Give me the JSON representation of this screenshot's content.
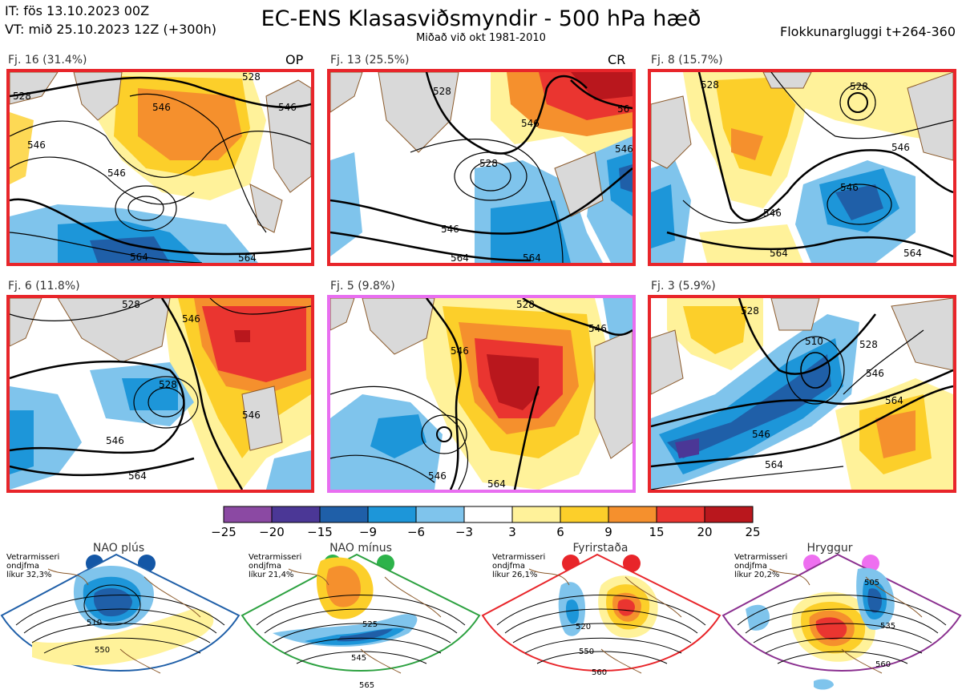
{
  "header": {
    "it": "IT: fös 13.10.2023 00Z",
    "vt": "VT: mið 25.10.2023 12Z  (+300h)",
    "title": "EC-ENS Klasasviðsmyndir - 500 hPa hæð",
    "subtitle": "Miðað við okt 1981-2010",
    "window": "Flokkunargluggi t+264-360"
  },
  "panels": [
    {
      "label": "Fj. 16 (31.4%)",
      "tag": "OP",
      "border": "#e8252a",
      "contours": [
        "528",
        "546",
        "546",
        "546",
        "564",
        "546",
        "528",
        "564"
      ]
    },
    {
      "label": "Fj. 13 (25.5%)",
      "tag": "CR",
      "border": "#e8252a",
      "contours": [
        "528",
        "546",
        "528",
        "546",
        "564",
        "564",
        "546",
        "56"
      ]
    },
    {
      "label": "Fj. 8 (15.7%)",
      "tag": "",
      "border": "#e8252a",
      "contours": [
        "528",
        "528",
        "546",
        "546",
        "546",
        "564",
        "564"
      ]
    },
    {
      "label": "Fj. 6 (11.8%)",
      "tag": "",
      "border": "#e8252a",
      "contours": [
        "528",
        "546",
        "528",
        "546",
        "564",
        "546"
      ]
    },
    {
      "label": "Fj. 5 (9.8%)",
      "tag": "",
      "border": "#e86ef0",
      "contours": [
        "528",
        "546",
        "546",
        "546",
        "564"
      ]
    },
    {
      "label": "Fj. 3 (5.9%)",
      "tag": "",
      "border": "#e8252a",
      "contours": [
        "528",
        "510",
        "528",
        "546",
        "564",
        "546",
        "564"
      ]
    }
  ],
  "colorbar": {
    "ticks": [
      "−25",
      "−20",
      "−15",
      "−9",
      "−6",
      "−3",
      "3",
      "6",
      "9",
      "15",
      "20",
      "25"
    ],
    "colors": [
      "#8b49a3",
      "#4b3796",
      "#1f5fa8",
      "#1d96d9",
      "#7fc4ec",
      "#ffffff",
      "#fff29a",
      "#fccf2a",
      "#f5902d",
      "#ea3530",
      "#b9171d"
    ]
  },
  "regimes": [
    {
      "name": "NAO plús",
      "prob_title": "Vetrarmisseri",
      "prob_sub": "ondjfma",
      "prob": "líkur 32,3%",
      "color": "#1f5fa8",
      "dot": "#1457a6",
      "contours": [
        "510",
        "550"
      ]
    },
    {
      "name": "NAO mínus",
      "prob_title": "Vetrarmisseri",
      "prob_sub": "ondjfma",
      "prob": "líkur 21,4%",
      "color": "#2ca140",
      "dot": "#2db34a",
      "contours": [
        "525",
        "545",
        "565"
      ]
    },
    {
      "name": "Fyrirstaða",
      "prob_title": "Vetrarmisseri",
      "prob_sub": "ondjfma",
      "prob": "líkur 26,1%",
      "color": "#e8252a",
      "dot": "#e8252a",
      "contours": [
        "520",
        "550",
        "560"
      ]
    },
    {
      "name": "Hryggur",
      "prob_title": "Vetrarmisseri",
      "prob_sub": "ondjfma",
      "prob": "líkur 20,2%",
      "color": "#8a2f8f",
      "dot": "#ee6ff0",
      "contours": [
        "505",
        "535",
        "560"
      ]
    }
  ]
}
